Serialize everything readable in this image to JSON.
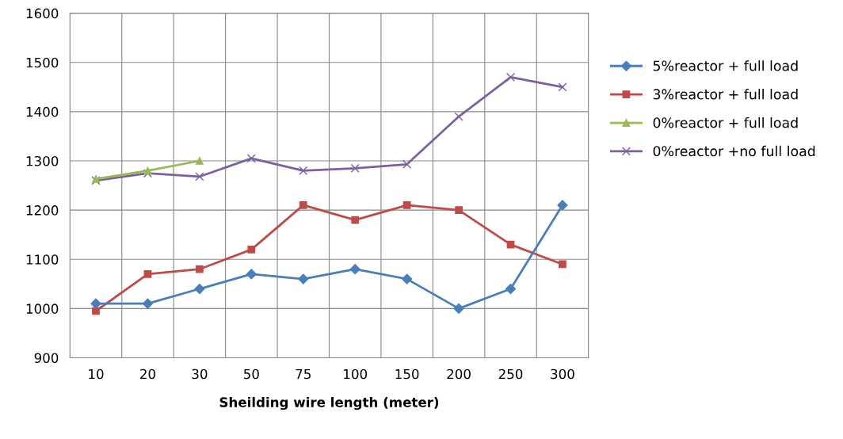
{
  "chart_data": {
    "type": "line",
    "xlabel": "Sheilding wire length (meter)",
    "categories": [
      "10",
      "20",
      "30",
      "50",
      "75",
      "100",
      "150",
      "200",
      "250",
      "300"
    ],
    "series": [
      {
        "name": "5%reactor + full load",
        "color": "#4a7ebb",
        "marker": "diamond",
        "values": [
          1010,
          1010,
          1040,
          1070,
          1060,
          1080,
          1060,
          1000,
          1040,
          1210
        ]
      },
      {
        "name": "3%reactor + full load",
        "color": "#be4b48",
        "marker": "square",
        "values": [
          995,
          1070,
          1080,
          1120,
          1210,
          1180,
          1210,
          1200,
          1130,
          1090
        ]
      },
      {
        "name": "0%reactor + full load",
        "color": "#98b954",
        "marker": "triangle",
        "values": [
          1263,
          1280,
          1300,
          null,
          null,
          null,
          null,
          null,
          null,
          null
        ]
      },
      {
        "name": "0%reactor +no full load",
        "color": "#7d60a0",
        "marker": "cross",
        "values": [
          1260,
          1275,
          1268,
          1305,
          1280,
          1285,
          1293,
          1390,
          1470,
          1450
        ]
      }
    ],
    "ylim": [
      900,
      1600
    ],
    "yticks": [
      900,
      1000,
      1100,
      1200,
      1300,
      1400,
      1500,
      1600
    ],
    "grid": true,
    "legend": "right"
  }
}
